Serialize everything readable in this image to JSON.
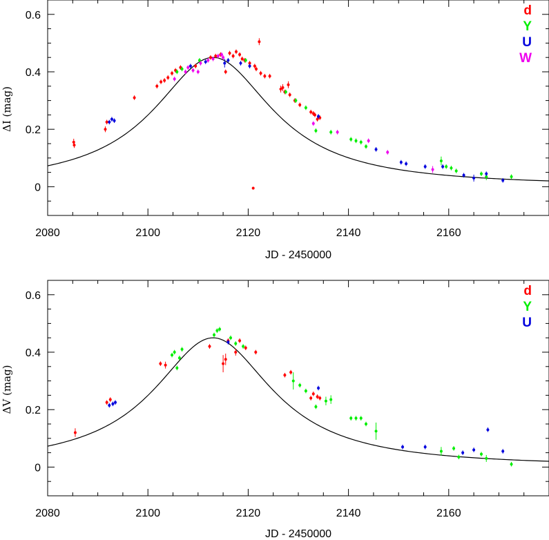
{
  "chart_data": [
    {
      "type": "scatter",
      "panel": "top",
      "xlabel": "JD - 2450000",
      "ylabel": "ΔI (mag)",
      "xlim": [
        2080,
        2180
      ],
      "ylim": [
        -0.1,
        0.65
      ],
      "x_ticks": [
        "2080",
        "2100",
        "2120",
        "2140",
        "2160"
      ],
      "y_ticks": [
        "0",
        "0.2",
        "0.4",
        "0.6"
      ],
      "legend": {
        "placement": "top-right",
        "entries": [
          "d",
          "Y",
          "U",
          "W"
        ]
      },
      "model_curve": {
        "name": "model",
        "peak_x": 2113,
        "peak_y": 0.45,
        "half_width": 14.5
      },
      "series": [
        {
          "name": "d",
          "color": "#ff0000",
          "points": [
            [
              2085.2,
              0.155,
              0.012
            ],
            [
              2085.3,
              0.145,
              0.01
            ],
            [
              2091.5,
              0.2,
              0.01
            ],
            [
              2091.8,
              0.225,
              0.008
            ],
            [
              2097.3,
              0.31,
              0.008
            ],
            [
              2101.8,
              0.35,
              0.008
            ],
            [
              2102.6,
              0.365,
              0.008
            ],
            [
              2103.3,
              0.37,
              0.008
            ],
            [
              2104.0,
              0.38,
              0.008
            ],
            [
              2104.8,
              0.395,
              0.008
            ],
            [
              2105.5,
              0.405,
              0.008
            ],
            [
              2106.5,
              0.415,
              0.008
            ],
            [
              2109.5,
              0.42,
              0.008
            ],
            [
              2112.5,
              0.45,
              0.008
            ],
            [
              2113.5,
              0.455,
              0.008
            ],
            [
              2114.5,
              0.46,
              0.008
            ],
            [
              2115.5,
              0.4,
              0.008
            ],
            [
              2116.3,
              0.465,
              0.008
            ],
            [
              2117.0,
              0.455,
              0.008
            ],
            [
              2117.6,
              0.47,
              0.008
            ],
            [
              2118.3,
              0.46,
              0.008
            ],
            [
              2118.8,
              0.445,
              0.008
            ],
            [
              2119.3,
              0.44,
              0.008
            ],
            [
              2120.3,
              0.43,
              0.008
            ],
            [
              2121.3,
              0.42,
              0.008
            ],
            [
              2121.6,
              0.41,
              0.008
            ],
            [
              2121.0,
              -0.005,
              0.005
            ],
            [
              2122.2,
              0.505,
              0.012
            ],
            [
              2122.5,
              0.395,
              0.008
            ],
            [
              2123.3,
              0.385,
              0.008
            ],
            [
              2124.3,
              0.385,
              0.008
            ],
            [
              2126.5,
              0.34,
              0.012
            ],
            [
              2126.9,
              0.345,
              0.012
            ],
            [
              2127.3,
              0.33,
              0.008
            ],
            [
              2128.0,
              0.355,
              0.012
            ],
            [
              2128.3,
              0.32,
              0.008
            ],
            [
              2129.3,
              0.3,
              0.008
            ],
            [
              2130.3,
              0.285,
              0.008
            ],
            [
              2132.5,
              0.26,
              0.008
            ],
            [
              2133.0,
              0.255,
              0.008
            ],
            [
              2133.3,
              0.25,
              0.008
            ],
            [
              2133.8,
              0.235,
              0.008
            ],
            [
              2134.3,
              0.24,
              0.008
            ]
          ]
        },
        {
          "name": "Y",
          "color": "#00ee00",
          "points": [
            [
              2105.8,
              0.4,
              0.008
            ],
            [
              2106.8,
              0.41,
              0.008
            ],
            [
              2110.3,
              0.44,
              0.008
            ],
            [
              2119.5,
              0.44,
              0.008
            ],
            [
              2127.5,
              0.33,
              0.008
            ],
            [
              2129.5,
              0.3,
              0.008
            ],
            [
              2131.5,
              0.275,
              0.008
            ],
            [
              2133.5,
              0.195,
              0.008
            ],
            [
              2136.5,
              0.19,
              0.008
            ],
            [
              2140.5,
              0.165,
              0.008
            ],
            [
              2141.5,
              0.16,
              0.008
            ],
            [
              2142.5,
              0.155,
              0.008
            ],
            [
              2143.5,
              0.14,
              0.008
            ],
            [
              2158.5,
              0.09,
              0.015
            ],
            [
              2159.5,
              0.07,
              0.008
            ],
            [
              2160.5,
              0.065,
              0.008
            ],
            [
              2161.5,
              0.055,
              0.008
            ],
            [
              2166.5,
              0.045,
              0.008
            ],
            [
              2167.5,
              0.035,
              0.012
            ],
            [
              2172.5,
              0.035,
              0.008
            ]
          ]
        },
        {
          "name": "U",
          "color": "#0000dd",
          "points": [
            [
              2092.3,
              0.225,
              0.008
            ],
            [
              2092.8,
              0.235,
              0.008
            ],
            [
              2093.3,
              0.23,
              0.008
            ],
            [
              2108.5,
              0.42,
              0.008
            ],
            [
              2111.5,
              0.435,
              0.008
            ],
            [
              2115.3,
              0.43,
              0.015
            ],
            [
              2116.0,
              0.44,
              0.008
            ],
            [
              2118.5,
              0.43,
              0.008
            ],
            [
              2120.3,
              0.42,
              0.008
            ],
            [
              2134.0,
              0.245,
              0.008
            ],
            [
              2145.5,
              0.13,
              0.008
            ],
            [
              2150.5,
              0.085,
              0.008
            ],
            [
              2151.5,
              0.08,
              0.008
            ],
            [
              2155.3,
              0.07,
              0.008
            ],
            [
              2158.8,
              0.07,
              0.008
            ],
            [
              2163.0,
              0.04,
              0.008
            ],
            [
              2165.0,
              0.03,
              0.012
            ],
            [
              2167.5,
              0.045,
              0.008
            ],
            [
              2170.8,
              0.022,
              0.008
            ]
          ]
        },
        {
          "name": "W",
          "color": "#ee00ee",
          "points": [
            [
              2105.3,
              0.375,
              0.008
            ],
            [
              2107.5,
              0.4,
              0.008
            ],
            [
              2108.0,
              0.415,
              0.008
            ],
            [
              2109.0,
              0.405,
              0.008
            ],
            [
              2110.0,
              0.4,
              0.008
            ],
            [
              2110.5,
              0.43,
              0.008
            ],
            [
              2112.0,
              0.44,
              0.008
            ],
            [
              2113.0,
              0.445,
              0.008
            ],
            [
              2114.0,
              0.455,
              0.008
            ],
            [
              2114.7,
              0.46,
              0.008
            ],
            [
              2115.0,
              0.45,
              0.008
            ],
            [
              2133.0,
              0.22,
              0.008
            ],
            [
              2137.8,
              0.19,
              0.008
            ],
            [
              2144.0,
              0.16,
              0.008
            ],
            [
              2147.8,
              0.12,
              0.008
            ],
            [
              2156.8,
              0.06,
              0.012
            ]
          ]
        }
      ]
    },
    {
      "type": "scatter",
      "panel": "bottom",
      "xlabel": "JD - 2450000",
      "ylabel": "ΔV (mag)",
      "xlim": [
        2080,
        2180
      ],
      "ylim": [
        -0.1,
        0.65
      ],
      "x_ticks": [
        "2080",
        "2100",
        "2120",
        "2140",
        "2160"
      ],
      "y_ticks": [
        "0",
        "0.2",
        "0.4",
        "0.6"
      ],
      "legend": {
        "placement": "top-right",
        "entries": [
          "d",
          "Y",
          "U"
        ]
      },
      "model_curve": {
        "name": "model",
        "peak_x": 2113,
        "peak_y": 0.45,
        "half_width": 14.5
      },
      "series": [
        {
          "name": "d",
          "color": "#ff0000",
          "points": [
            [
              2085.5,
              0.12,
              0.015
            ],
            [
              2091.8,
              0.225,
              0.008
            ],
            [
              2092.5,
              0.235,
              0.008
            ],
            [
              2102.5,
              0.36,
              0.008
            ],
            [
              2103.5,
              0.355,
              0.012
            ],
            [
              2112.3,
              0.42,
              0.008
            ],
            [
              2115.0,
              0.36,
              0.03
            ],
            [
              2115.5,
              0.375,
              0.02
            ],
            [
              2116.0,
              0.44,
              0.008
            ],
            [
              2117.5,
              0.4,
              0.012
            ],
            [
              2118.3,
              0.44,
              0.008
            ],
            [
              2119.5,
              0.415,
              0.008
            ],
            [
              2121.5,
              0.4,
              0.008
            ],
            [
              2127.3,
              0.32,
              0.008
            ],
            [
              2128.5,
              0.33,
              0.008
            ],
            [
              2132.5,
              0.24,
              0.008
            ],
            [
              2133.0,
              0.255,
              0.008
            ],
            [
              2133.8,
              0.245,
              0.008
            ],
            [
              2134.3,
              0.24,
              0.008
            ]
          ]
        },
        {
          "name": "Y",
          "color": "#00ee00",
          "points": [
            [
              2104.8,
              0.39,
              0.008
            ],
            [
              2105.3,
              0.4,
              0.008
            ],
            [
              2105.8,
              0.345,
              0.008
            ],
            [
              2106.3,
              0.38,
              0.008
            ],
            [
              2106.8,
              0.41,
              0.008
            ],
            [
              2113.2,
              0.46,
              0.008
            ],
            [
              2113.8,
              0.475,
              0.008
            ],
            [
              2114.3,
              0.48,
              0.008
            ],
            [
              2116.5,
              0.45,
              0.008
            ],
            [
              2117.5,
              0.43,
              0.008
            ],
            [
              2119.0,
              0.42,
              0.008
            ],
            [
              2129.0,
              0.3,
              0.03
            ],
            [
              2130.3,
              0.285,
              0.008
            ],
            [
              2131.5,
              0.265,
              0.008
            ],
            [
              2133.5,
              0.21,
              0.008
            ],
            [
              2135.5,
              0.23,
              0.015
            ],
            [
              2136.5,
              0.235,
              0.015
            ],
            [
              2140.5,
              0.17,
              0.008
            ],
            [
              2141.5,
              0.17,
              0.008
            ],
            [
              2142.5,
              0.17,
              0.008
            ],
            [
              2143.5,
              0.15,
              0.008
            ],
            [
              2145.5,
              0.125,
              0.03
            ],
            [
              2158.5,
              0.055,
              0.015
            ],
            [
              2161.0,
              0.065,
              0.008
            ],
            [
              2162.0,
              0.035,
              0.008
            ],
            [
              2166.5,
              0.045,
              0.008
            ],
            [
              2167.5,
              0.03,
              0.012
            ],
            [
              2172.5,
              0.01,
              0.008
            ]
          ]
        },
        {
          "name": "U",
          "color": "#0000dd",
          "points": [
            [
              2092.3,
              0.215,
              0.008
            ],
            [
              2093.0,
              0.22,
              0.008
            ],
            [
              2093.5,
              0.225,
              0.008
            ],
            [
              2116.0,
              0.435,
              0.008
            ],
            [
              2134.0,
              0.275,
              0.008
            ],
            [
              2150.8,
              0.07,
              0.008
            ],
            [
              2155.3,
              0.07,
              0.008
            ],
            [
              2162.8,
              0.05,
              0.008
            ],
            [
              2165.0,
              0.06,
              0.008
            ],
            [
              2167.8,
              0.13,
              0.008
            ],
            [
              2170.8,
              0.055,
              0.008
            ]
          ]
        }
      ]
    }
  ]
}
